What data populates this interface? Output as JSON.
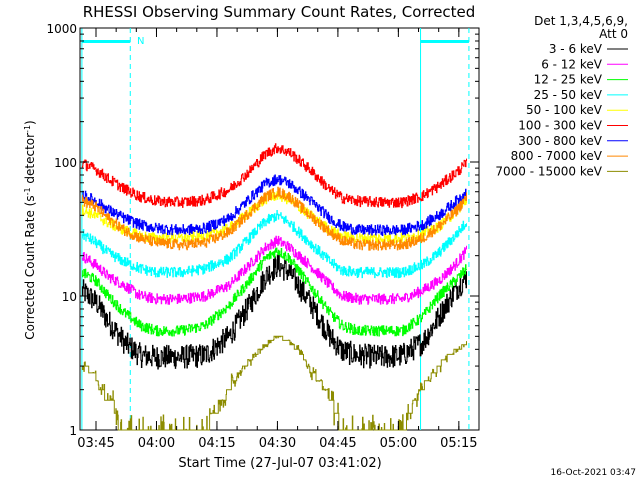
{
  "chart_data": {
    "type": "line",
    "title": "RHESSI Observing Summary Count Rates, Corrected",
    "xlabel": "Start Time (27-Jul-07 03:41:02)",
    "ylabel_main": "Corrected Count Rate (s",
    "ylabel_sup1": "-1",
    "ylabel_mid": " detector",
    "ylabel_sup2": "-1",
    "ylabel_end": ")",
    "y_scale": "log",
    "ylim": [
      1,
      1000
    ],
    "y_ticks": [
      {
        "value": 1,
        "label": "1"
      },
      {
        "value": 10,
        "label": "10"
      },
      {
        "value": 100,
        "label": "100"
      },
      {
        "value": 1000,
        "label": "1000"
      }
    ],
    "x_start": "03:41:02",
    "xlim_minutes": [
      221.03,
      320.0
    ],
    "x_ticks": [
      {
        "minutes": 225,
        "label": "03:45"
      },
      {
        "minutes": 240,
        "label": "04:00"
      },
      {
        "minutes": 255,
        "label": "04:15"
      },
      {
        "minutes": 270,
        "label": "04:30"
      },
      {
        "minutes": 285,
        "label": "04:45"
      },
      {
        "minutes": 300,
        "label": "05:00"
      },
      {
        "minutes": 315,
        "label": "05:15"
      }
    ],
    "legend_header": [
      "Det 1,3,4,5,6,9,",
      "Att 0"
    ],
    "legend_position": "right",
    "timestamp": "16-Oct-2021 03:47",
    "saa_marker_label": "N",
    "series": [
      {
        "name": "3 - 6 keV",
        "color": "#000000",
        "x": [
          221.5,
          225,
          228,
          232,
          236,
          240,
          246,
          252,
          258,
          263,
          267,
          270,
          273,
          278,
          283,
          286,
          290,
          296,
          301,
          306,
          310,
          314,
          317
        ],
        "y": [
          11,
          9,
          6.5,
          4.5,
          3.6,
          3.5,
          3.5,
          3.6,
          5.0,
          8.5,
          14,
          17,
          15,
          9.0,
          5.0,
          3.9,
          3.6,
          3.5,
          3.6,
          4.5,
          7,
          11,
          14
        ]
      },
      {
        "name": "6 - 12 keV",
        "color": "#ff00ff",
        "x": [
          221.5,
          225,
          228,
          232,
          236,
          240,
          246,
          252,
          258,
          263,
          267,
          270,
          273,
          278,
          283,
          286,
          290,
          296,
          301,
          306,
          310,
          314,
          317
        ],
        "y": [
          20,
          17,
          14,
          12,
          10,
          9.5,
          9.5,
          10,
          12,
          17,
          23,
          26,
          23,
          17,
          12,
          10,
          9.5,
          9.5,
          9.5,
          11,
          13,
          17,
          22
        ]
      },
      {
        "name": "12 - 25 keV",
        "color": "#00ff00",
        "x": [
          221.5,
          225,
          228,
          232,
          236,
          240,
          246,
          252,
          258,
          263,
          267,
          270,
          273,
          278,
          283,
          286,
          290,
          296,
          301,
          306,
          310,
          314,
          317
        ],
        "y": [
          15,
          13,
          10,
          7.5,
          6.0,
          5.5,
          5.5,
          6.0,
          8.5,
          13,
          19,
          22,
          19,
          12,
          7.5,
          6,
          5.5,
          5.5,
          5.5,
          7,
          10,
          13,
          16
        ]
      },
      {
        "name": "25 - 50 keV",
        "color": "#00ffff",
        "x": [
          221.5,
          225,
          228,
          232,
          236,
          240,
          246,
          252,
          258,
          263,
          267,
          270,
          273,
          278,
          283,
          286,
          290,
          296,
          301,
          306,
          310,
          314,
          317
        ],
        "y": [
          29,
          25,
          21,
          18,
          16,
          15,
          15,
          16,
          19,
          27,
          36,
          40,
          35,
          25,
          18,
          15.5,
          15,
          15,
          15,
          17,
          21,
          28,
          36
        ]
      },
      {
        "name": "50 - 100 keV",
        "color": "#ffff00",
        "x": [
          221.5,
          225,
          228,
          232,
          236,
          240,
          246,
          252,
          258,
          263,
          267,
          270,
          273,
          278,
          283,
          286,
          290,
          296,
          301,
          306,
          310,
          314,
          317
        ],
        "y": [
          44,
          40,
          35,
          31,
          28,
          27,
          27,
          28,
          32,
          42,
          53,
          57,
          52,
          40,
          31,
          28,
          27,
          27,
          27,
          29,
          33,
          42,
          52
        ]
      },
      {
        "name": "100 - 300 keV",
        "color": "#ff0000",
        "x": [
          221.5,
          225,
          228,
          232,
          236,
          240,
          246,
          252,
          258,
          263,
          267,
          270,
          273,
          278,
          283,
          286,
          290,
          296,
          301,
          306,
          310,
          314,
          317
        ],
        "y": [
          98,
          88,
          75,
          63,
          55,
          51,
          50,
          52,
          62,
          85,
          115,
          128,
          118,
          88,
          62,
          54,
          51,
          50,
          50,
          56,
          66,
          82,
          98
        ]
      },
      {
        "name": "300 - 800 keV",
        "color": "#0000ff",
        "x": [
          221.5,
          225,
          228,
          232,
          236,
          240,
          246,
          252,
          258,
          263,
          267,
          270,
          273,
          278,
          283,
          286,
          290,
          296,
          301,
          306,
          310,
          314,
          317
        ],
        "y": [
          57,
          51,
          44,
          38,
          34,
          32,
          31,
          32,
          38,
          53,
          69,
          75,
          69,
          52,
          38,
          33,
          31,
          31,
          31,
          34,
          40,
          50,
          60
        ]
      },
      {
        "name": "800 - 7000 keV",
        "color": "#ff8800",
        "x": [
          221.5,
          225,
          228,
          232,
          236,
          240,
          246,
          252,
          258,
          263,
          267,
          270,
          273,
          278,
          283,
          286,
          290,
          296,
          301,
          306,
          310,
          314,
          317
        ],
        "y": [
          52,
          46,
          38,
          31,
          27,
          25,
          24,
          25,
          30,
          42,
          55,
          60,
          55,
          40,
          30,
          26,
          24,
          24,
          24,
          27,
          33,
          42,
          55
        ]
      },
      {
        "name": "7000 - 15000 keV",
        "color": "#8c8c00",
        "x": [
          221.5,
          224.5,
          226,
          229.5,
          231,
          252,
          254,
          257,
          259,
          261,
          263,
          266,
          268,
          270,
          273,
          276,
          278,
          280,
          283,
          286,
          301,
          303,
          306,
          309,
          311,
          314,
          317
        ],
        "y": [
          3.0,
          2.7,
          2.0,
          1.5,
          1.0,
          1.0,
          1.3,
          1.8,
          2.3,
          2.8,
          3.3,
          4.1,
          4.6,
          5.1,
          4.5,
          3.7,
          2.8,
          2.4,
          1.8,
          1.0,
          1.0,
          1.4,
          2.1,
          2.7,
          3.3,
          3.9,
          4.4
        ]
      }
    ],
    "region_lines": [
      {
        "minutes": 221.5,
        "style": "solid"
      },
      {
        "minutes": 233.5,
        "style": "dashed"
      },
      {
        "minutes": 305.5,
        "style": "solid"
      },
      {
        "minutes": 317.5,
        "style": "dashed"
      }
    ],
    "status_bars": [
      {
        "start": 221.5,
        "end": 233.5
      },
      {
        "start": 305.5,
        "end": 317.5
      }
    ]
  }
}
